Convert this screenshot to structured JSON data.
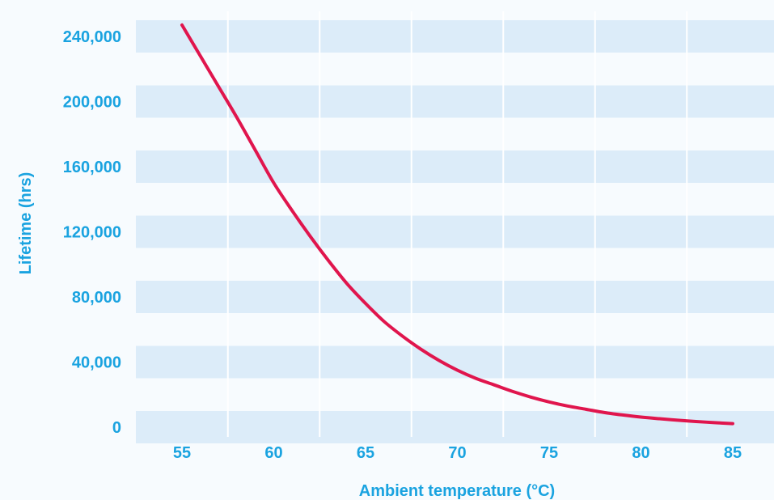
{
  "chart_data": {
    "type": "line",
    "xlabel": "Ambient temperature (°C)",
    "ylabel": "Lifetime (hrs)",
    "xlim": [
      52.5,
      87.5
    ],
    "ylim": [
      0,
      250000
    ],
    "x_ticks": [
      55,
      60,
      65,
      70,
      75,
      80,
      85
    ],
    "y_ticks": [
      0,
      40000,
      80000,
      120000,
      160000,
      200000,
      240000
    ],
    "y_tick_labels": [
      "0",
      "40,000",
      "80,000",
      "120,000",
      "160,000",
      "200,000",
      "240,000"
    ],
    "grid": "horizontal bands",
    "legend": "none",
    "series": [
      {
        "x": [
          55,
          56,
          57,
          58,
          59,
          60,
          61,
          62,
          63,
          64,
          65,
          66,
          67,
          68,
          69,
          70,
          71,
          72,
          73,
          74,
          75,
          76,
          77,
          78,
          79,
          80,
          81,
          82,
          83,
          84,
          85
        ],
        "values": [
          247000,
          228000,
          209000,
          190000,
          170000,
          150000,
          133000,
          117000,
          102000,
          88000,
          76000,
          65000,
          56000,
          48000,
          41000,
          35000,
          30000,
          26000,
          22000,
          18500,
          15500,
          13000,
          11000,
          9000,
          7500,
          6200,
          5200,
          4300,
          3500,
          2800,
          2200
        ]
      }
    ]
  },
  "colors": {
    "line": "#e0154d",
    "band": "#dcecf9",
    "label": "#1aa3e0",
    "background": "#f7fbfe"
  }
}
